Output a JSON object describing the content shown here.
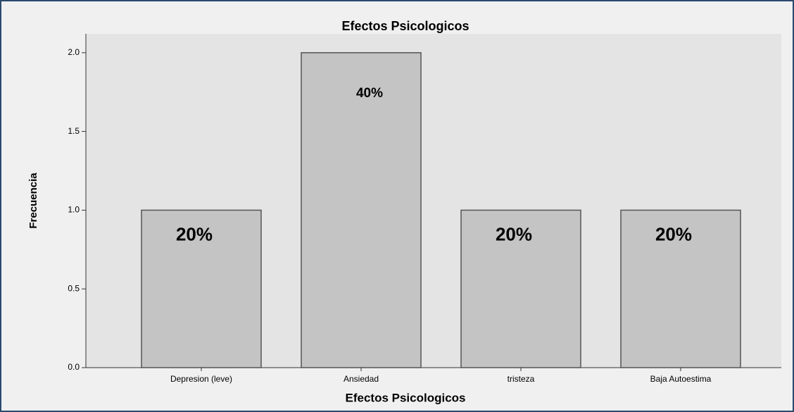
{
  "chart_data": {
    "type": "bar",
    "title": "Efectos Psicologicos",
    "categories": [
      "Depresion (leve)",
      "Ansiedad",
      "tristeza",
      "Baja Autoestima"
    ],
    "values": [
      1,
      2,
      1,
      1
    ],
    "annotations": [
      "20%",
      "40%",
      "20%",
      "20%"
    ],
    "color": "#c4c4c4",
    "xlabel": "Efectos Psicologicos",
    "ylabel": "Frecuencia",
    "ylim": [
      0,
      2.12
    ],
    "yticks": [
      {
        "value": 0,
        "label": "0.0"
      },
      {
        "value": 0.5,
        "label": "0.5"
      },
      {
        "value": 1,
        "label": "1.0"
      },
      {
        "value": 1.5,
        "label": "1.5"
      },
      {
        "value": 2,
        "label": "2.0"
      }
    ]
  }
}
